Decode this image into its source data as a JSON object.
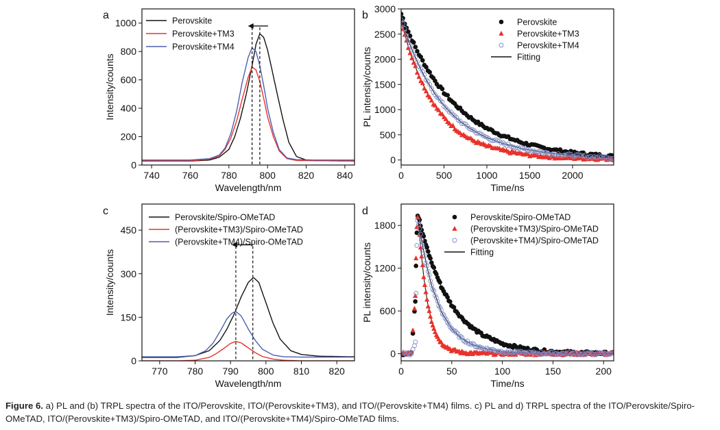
{
  "caption": {
    "label": "Figure 6.",
    "text": "a) PL and (b) TRPL spectra of the ITO/Perovskite, ITO/(Perovskite+TM3), and ITO/(Perovskite+TM4) films. c) PL and d) TRPL spectra of the ITO/Perovskite/Spiro-OMeTAD, ITO/(Perovskite+TM3)/Spiro-OMeTAD, and ITO/(Perovskite+TM4)/Spiro-OMeTAD films."
  },
  "colors": {
    "black": "#111111",
    "red": "#e8322a",
    "blue": "#4a5fb0",
    "open_marker": "#7d8cc8"
  },
  "chart_data": [
    {
      "panel": "a",
      "type": "line",
      "xlabel": "Wavelength/nm",
      "ylabel": "Intensity/counts",
      "xlim": [
        735,
        845
      ],
      "ylim": [
        0,
        1100
      ],
      "xticks": [
        740,
        760,
        780,
        800,
        820,
        840
      ],
      "yticks": [
        0,
        200,
        400,
        600,
        800,
        1000
      ],
      "legend_position": "top-left",
      "annotation": "left-pointing arrow between dashed lines at peaks (796 nm → 792 nm)",
      "peak_markers": [
        792,
        796
      ],
      "series": [
        {
          "name": "Perovskite",
          "color": "#111111",
          "x": [
            735,
            760,
            770,
            775,
            780,
            783,
            786,
            789,
            792,
            794,
            796,
            798,
            800,
            802,
            805,
            808,
            811,
            815,
            820,
            830,
            845
          ],
          "y": [
            28,
            28,
            35,
            55,
            110,
            200,
            330,
            500,
            700,
            850,
            925,
            900,
            810,
            690,
            500,
            320,
            160,
            60,
            35,
            30,
            28
          ]
        },
        {
          "name": "Perovskite+TM3",
          "color": "#e8322a",
          "x": [
            735,
            760,
            770,
            775,
            778,
            781,
            784,
            787,
            790,
            792,
            794,
            796,
            798,
            800,
            803,
            806,
            810,
            815,
            825,
            845
          ],
          "y": [
            30,
            30,
            40,
            65,
            110,
            190,
            310,
            470,
            620,
            690,
            670,
            590,
            470,
            340,
            200,
            100,
            45,
            32,
            30,
            30
          ]
        },
        {
          "name": "Perovskite+TM4",
          "color": "#4a5fb0",
          "x": [
            735,
            760,
            770,
            775,
            778,
            781,
            784,
            787,
            790,
            792,
            794,
            796,
            798,
            800,
            803,
            806,
            810,
            815,
            825,
            845
          ],
          "y": [
            35,
            35,
            45,
            70,
            120,
            220,
            380,
            590,
            760,
            825,
            800,
            700,
            560,
            400,
            230,
            110,
            50,
            38,
            35,
            35
          ]
        }
      ]
    },
    {
      "panel": "b",
      "type": "scatter",
      "xlabel": "Time/ns",
      "ylabel": "PL intensity/counts",
      "xlim": [
        0,
        2480
      ],
      "ylim": [
        -100,
        3000
      ],
      "xticks": [
        0,
        500,
        1000,
        1500,
        2000
      ],
      "yticks": [
        0,
        500,
        1000,
        1500,
        2000,
        2500,
        3000
      ],
      "legend_position": "top-right",
      "series": [
        {
          "name": "Perovskite",
          "marker": "filled-circle",
          "color": "#111111",
          "x": [
            0,
            100,
            200,
            300,
            400,
            500,
            600,
            700,
            800,
            900,
            1000,
            1200,
            1400,
            1600,
            1800,
            2000,
            2200,
            2480
          ],
          "y": [
            2900,
            2480,
            2120,
            1820,
            1560,
            1340,
            1150,
            990,
            850,
            730,
            630,
            470,
            350,
            260,
            195,
            145,
            110,
            70
          ]
        },
        {
          "name": "Perovskite+TM3",
          "marker": "filled-triangle",
          "color": "#e8322a",
          "x": [
            0,
            100,
            200,
            300,
            400,
            500,
            600,
            700,
            800,
            900,
            1000,
            1200,
            1400,
            1600,
            1800,
            2000,
            2200,
            2480
          ],
          "y": [
            2750,
            2150,
            1700,
            1340,
            1060,
            840,
            670,
            530,
            420,
            340,
            275,
            180,
            120,
            80,
            55,
            40,
            30,
            22
          ]
        },
        {
          "name": "Perovskite+TM4",
          "marker": "open-circle",
          "color": "#7d8cc8",
          "x": [
            0,
            100,
            200,
            300,
            400,
            500,
            600,
            700,
            800,
            900,
            1000,
            1200,
            1400,
            1600,
            1800,
            2000,
            2200,
            2480
          ],
          "y": [
            2800,
            2300,
            1900,
            1570,
            1300,
            1080,
            900,
            750,
            630,
            530,
            445,
            320,
            230,
            165,
            120,
            90,
            65,
            45
          ]
        },
        {
          "name": "Fitting",
          "marker": "line",
          "color": "#111111"
        }
      ]
    },
    {
      "panel": "c",
      "type": "line",
      "xlabel": "Wavelength/nm",
      "ylabel": "Intensity/counts",
      "xlim": [
        765,
        825
      ],
      "ylim": [
        0,
        540
      ],
      "xticks": [
        770,
        780,
        790,
        800,
        810,
        820
      ],
      "yticks": [
        0,
        150,
        300,
        450
      ],
      "legend_position": "top-left",
      "annotation": "left-pointing arrow between dashed lines at peaks (796 nm → 791.5 nm)",
      "peak_markers": [
        791.5,
        796.3
      ],
      "series": [
        {
          "name": "Perovskite/Spiro-OMeTAD",
          "color": "#111111",
          "x": [
            765,
            775,
            780,
            784,
            787,
            789,
            791,
            793,
            795,
            796.5,
            798,
            800,
            802,
            804,
            807,
            810,
            815,
            825
          ],
          "y": [
            12,
            12,
            18,
            35,
            70,
            110,
            160,
            220,
            270,
            287,
            270,
            200,
            130,
            75,
            35,
            22,
            16,
            14
          ]
        },
        {
          "name": "(Perovskite+TM3)/Spiro-OMeTAD",
          "color": "#e8322a",
          "x": [
            765,
            775,
            780,
            784,
            786,
            788,
            790,
            791.5,
            793,
            795,
            797,
            799,
            802,
            805,
            810,
            825
          ],
          "y": [
            0,
            0,
            2,
            12,
            25,
            42,
            60,
            67,
            62,
            45,
            28,
            15,
            6,
            2,
            0,
            0
          ]
        },
        {
          "name": "(Perovskite+TM4)/Spiro-OMeTAD",
          "color": "#4a5fb0",
          "x": [
            765,
            775,
            780,
            783,
            785,
            787,
            789,
            790.5,
            791.5,
            793,
            795,
            797,
            799,
            802,
            805,
            810,
            825
          ],
          "y": [
            14,
            14,
            18,
            35,
            60,
            100,
            145,
            165,
            170,
            155,
            110,
            70,
            40,
            20,
            14,
            13,
            13
          ]
        }
      ]
    },
    {
      "panel": "d",
      "type": "scatter",
      "xlabel": "Time/ns",
      "ylabel": "PL intensity/counts",
      "xlim": [
        0,
        210
      ],
      "ylim": [
        -100,
        2100
      ],
      "xticks": [
        0,
        50,
        100,
        150,
        200
      ],
      "yticks": [
        0,
        600,
        1200,
        1800
      ],
      "legend_position": "top-right",
      "series": [
        {
          "name": "Perovskite/Spiro-OMeTAD",
          "marker": "filled-circle",
          "color": "#111111",
          "x": [
            0,
            5,
            10,
            14,
            15,
            16,
            18,
            20,
            25,
            30,
            40,
            50,
            60,
            70,
            80,
            100,
            120,
            140,
            160,
            180,
            210
          ],
          "y": [
            0,
            0,
            0,
            750,
            1500,
            1950,
            1900,
            1750,
            1500,
            1280,
            930,
            680,
            500,
            365,
            265,
            140,
            75,
            40,
            22,
            12,
            5
          ]
        },
        {
          "name": "(Perovskite+TM3)/Spiro-OMeTAD",
          "marker": "filled-triangle",
          "color": "#e8322a",
          "x": [
            0,
            5,
            10,
            14,
            15,
            16,
            18,
            20,
            23,
            26,
            30,
            35,
            40,
            50,
            60,
            70,
            80,
            100,
            120,
            150,
            210
          ],
          "y": [
            10,
            10,
            10,
            800,
            1600,
            1950,
            1700,
            1380,
            1000,
            720,
            460,
            260,
            145,
            50,
            18,
            8,
            5,
            3,
            2,
            1,
            0
          ]
        },
        {
          "name": "(Perovskite+TM4)/Spiro-OMeTAD",
          "marker": "open-circle",
          "color": "#7d8cc8",
          "x": [
            0,
            5,
            10,
            14,
            15,
            16,
            18,
            20,
            25,
            30,
            40,
            50,
            60,
            70,
            80,
            100,
            120,
            140,
            160,
            180,
            210
          ],
          "y": [
            0,
            0,
            0,
            150,
            1200,
            1900,
            1780,
            1600,
            1250,
            960,
            580,
            350,
            210,
            130,
            80,
            30,
            12,
            6,
            3,
            2,
            1
          ]
        },
        {
          "name": "Fitting",
          "marker": "line",
          "color": "#111111"
        }
      ]
    }
  ]
}
